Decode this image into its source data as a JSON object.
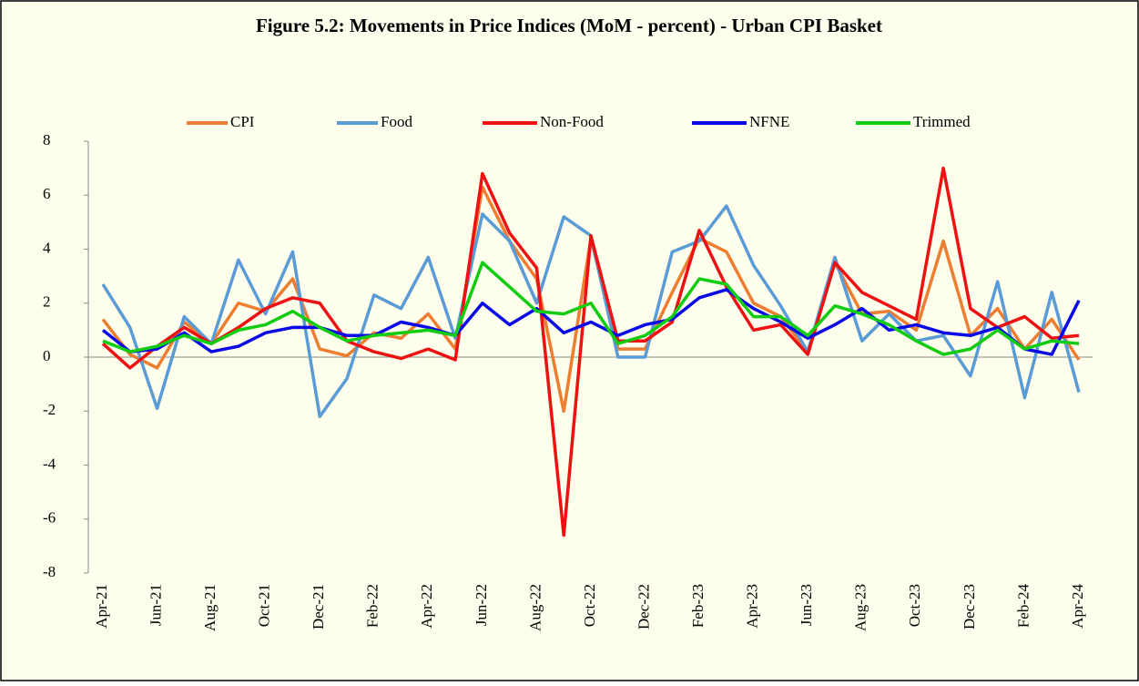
{
  "chart_data": {
    "type": "line",
    "title": "Figure 5.2: Movements in Price Indices (MoM - percent) - Urban CPI Basket",
    "categories": [
      "Apr-21",
      null,
      "Jun-21",
      null,
      "Aug-21",
      null,
      "Oct-21",
      null,
      "Dec-21",
      null,
      "Feb-22",
      null,
      "Apr-22",
      null,
      "Jun-22",
      null,
      "Aug-22",
      null,
      "Oct-22",
      null,
      "Dec-22",
      null,
      "Feb-23",
      null,
      "Apr-23",
      null,
      "Jun-23",
      null,
      "Aug-23",
      null,
      "Oct-23",
      null,
      "Dec-23",
      null,
      "Feb-24",
      null,
      "Apr-24"
    ],
    "series": [
      {
        "name": "CPI",
        "color": "#ed7d31",
        "values": [
          1.4,
          0.1,
          -0.4,
          1.3,
          0.5,
          2.0,
          1.7,
          2.9,
          0.3,
          0.05,
          0.9,
          0.7,
          1.6,
          0.3,
          6.3,
          4.3,
          2.9,
          -2.0,
          4.4,
          0.3,
          0.3,
          2.4,
          4.4,
          3.9,
          2.0,
          1.5,
          0.2,
          3.5,
          1.6,
          1.7,
          1.0,
          4.3,
          0.8,
          1.8,
          0.3,
          1.4,
          -0.1
        ]
      },
      {
        "name": "Food",
        "color": "#5b9bd5",
        "values": [
          2.7,
          1.1,
          -1.9,
          1.5,
          0.5,
          3.6,
          1.6,
          3.9,
          -2.2,
          -0.8,
          2.3,
          1.8,
          3.7,
          0.7,
          5.3,
          4.3,
          2.0,
          5.2,
          4.5,
          0.0,
          0.0,
          3.9,
          4.3,
          5.6,
          3.4,
          1.9,
          0.2,
          3.7,
          0.6,
          1.6,
          0.6,
          0.8,
          -0.7,
          2.8,
          -1.5,
          2.4,
          -1.3
        ]
      },
      {
        "name": "Non-Food",
        "color": "#ee1111",
        "values": [
          0.5,
          -0.4,
          0.4,
          1.1,
          0.5,
          1.1,
          1.8,
          2.2,
          2.0,
          0.6,
          0.2,
          -0.05,
          0.3,
          -0.1,
          6.8,
          4.6,
          3.3,
          -6.6,
          4.5,
          0.6,
          0.6,
          1.3,
          4.7,
          2.6,
          1.0,
          1.2,
          0.1,
          3.5,
          2.4,
          1.9,
          1.4,
          7.0,
          1.8,
          1.1,
          1.5,
          0.7,
          0.8
        ]
      },
      {
        "name": "NFNE",
        "color": "#0a0ae6",
        "values": [
          1.0,
          0.2,
          0.3,
          0.9,
          0.2,
          0.4,
          0.9,
          1.1,
          1.1,
          0.8,
          0.8,
          1.3,
          1.1,
          0.8,
          2.0,
          1.2,
          1.8,
          0.9,
          1.3,
          0.8,
          1.2,
          1.4,
          2.2,
          2.5,
          1.8,
          1.3,
          0.7,
          1.2,
          1.8,
          1.0,
          1.2,
          0.9,
          0.8,
          1.1,
          0.3,
          0.1,
          2.1
        ]
      },
      {
        "name": "Trimmed",
        "color": "#11cc11",
        "values": [
          0.6,
          0.2,
          0.4,
          0.8,
          0.5,
          1.0,
          1.2,
          1.7,
          1.1,
          0.6,
          0.8,
          0.9,
          1.0,
          0.8,
          3.5,
          2.6,
          1.7,
          1.6,
          2.0,
          0.5,
          0.8,
          1.5,
          2.9,
          2.7,
          1.5,
          1.5,
          0.8,
          1.9,
          1.6,
          1.2,
          0.6,
          0.1,
          0.3,
          1.0,
          0.3,
          0.6,
          0.5
        ]
      }
    ],
    "ylim": [
      -8,
      8
    ],
    "yticks": [
      -8,
      -6,
      -4,
      -2,
      0,
      2,
      4,
      6,
      8
    ],
    "legend": "top"
  }
}
